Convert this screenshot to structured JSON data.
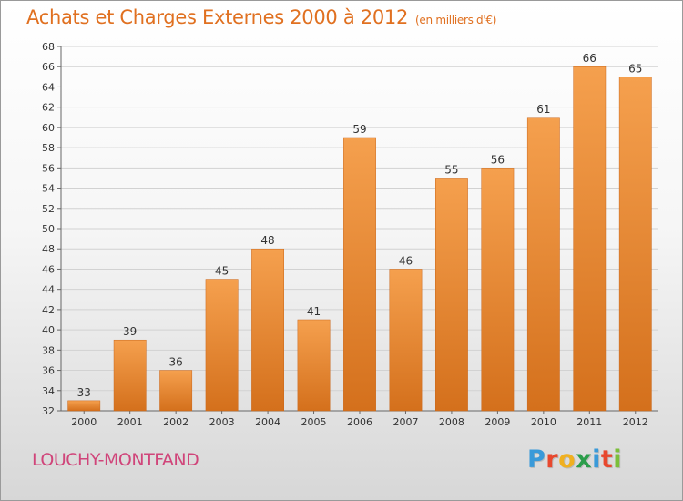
{
  "chart_data": {
    "type": "bar",
    "title": "Achats et Charges Externes 2000 à 2012",
    "subtitle": "(en milliers d'€)",
    "categories": [
      "2000",
      "2001",
      "2002",
      "2003",
      "2004",
      "2005",
      "2006",
      "2007",
      "2008",
      "2009",
      "2010",
      "2011",
      "2012"
    ],
    "values": [
      33,
      39,
      36,
      45,
      48,
      41,
      59,
      46,
      55,
      56,
      61,
      66,
      65
    ],
    "ylim": [
      32,
      68
    ],
    "yticks": [
      32,
      34,
      36,
      38,
      40,
      42,
      44,
      46,
      48,
      50,
      52,
      54,
      56,
      58,
      60,
      62,
      64,
      66,
      68
    ],
    "grid": true,
    "bar_color": "#f5a04e",
    "bar_color_dark": "#d4701c"
  },
  "location": "LOUCHY-MONTFAND",
  "brand": {
    "letters": [
      "P",
      "r",
      "o",
      "x",
      "i",
      "t",
      "i"
    ],
    "colors": [
      "#3a9ad9",
      "#e8482e",
      "#f0b020",
      "#2a9d4a",
      "#3a9ad9",
      "#e8482e",
      "#7bbf3a"
    ]
  }
}
